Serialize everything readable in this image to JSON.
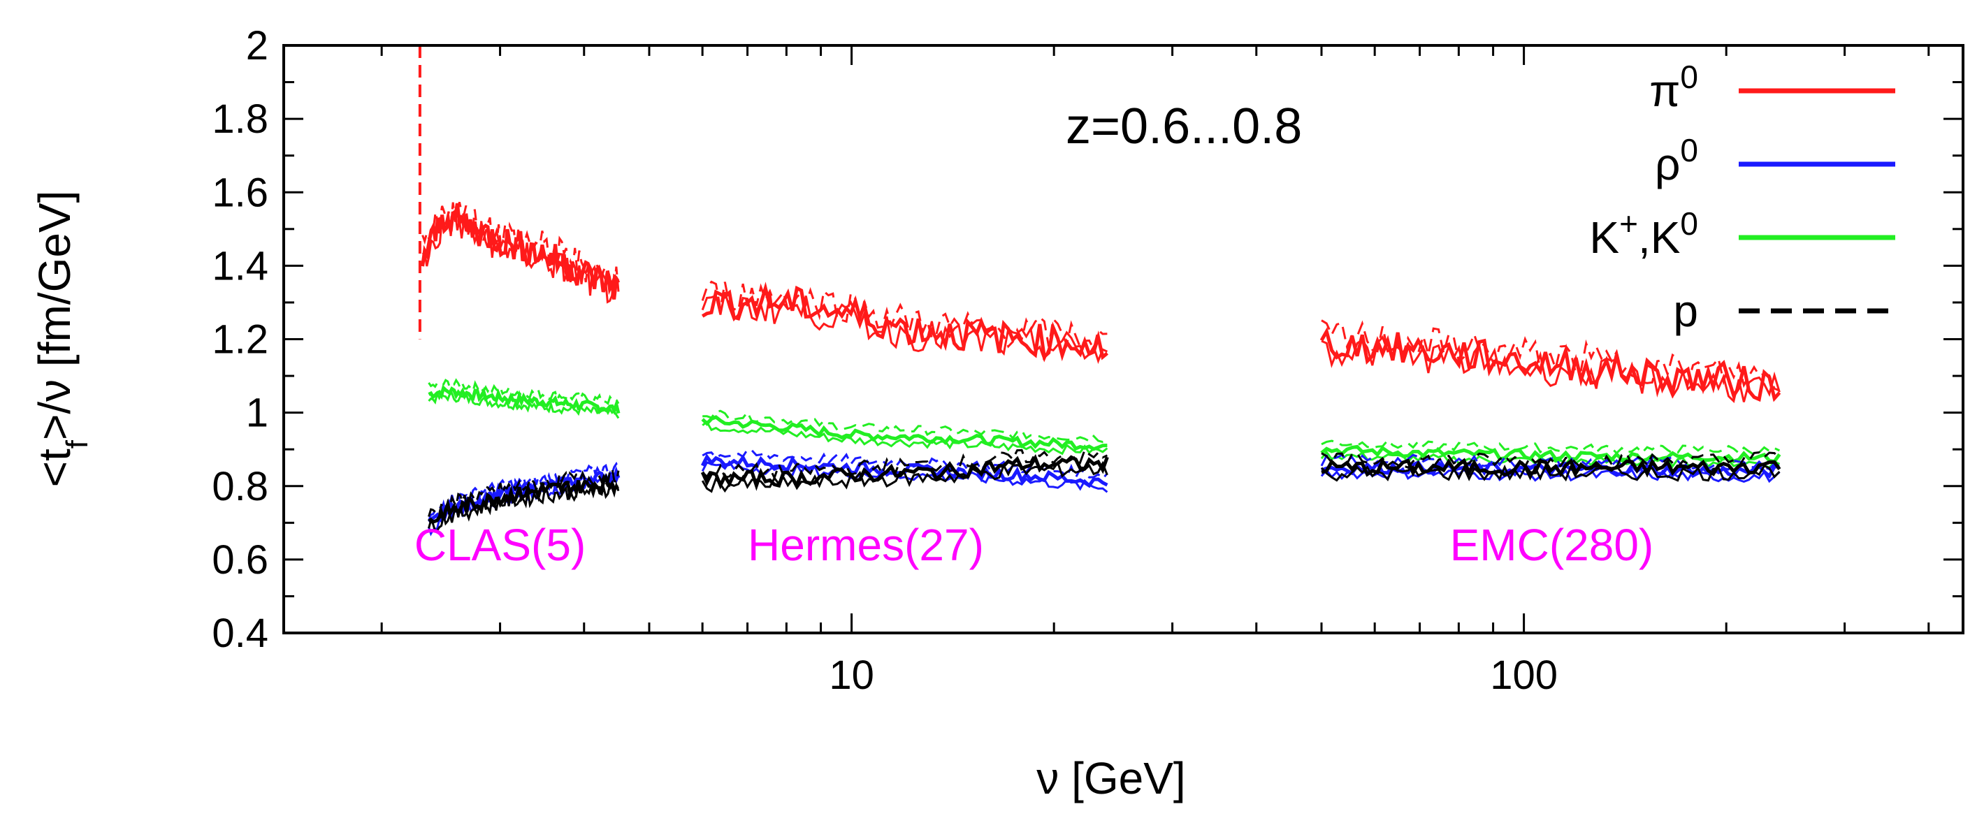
{
  "chart_data": {
    "type": "line",
    "title": "",
    "annotation": "z=0.6...0.8",
    "xlabel": "ν [GeV]",
    "ylabel": "<t_f>/ν [fm/GeV]",
    "xscale": "log",
    "xlim": [
      1.43,
      450
    ],
    "ylim": [
      0.4,
      2.0
    ],
    "xticks": [
      1,
      10,
      100
    ],
    "yticks": [
      0.4,
      0.6,
      0.8,
      1.0,
      1.2,
      1.4,
      1.6,
      1.8,
      2.0
    ],
    "ytick_labels": [
      "0.4",
      "0.6",
      "0.8",
      "1",
      "1.2",
      "1.4",
      "1.6",
      "1.8",
      "2"
    ],
    "xtick_labels": [
      "10",
      "100"
    ],
    "legend_position": "top-right",
    "colors": {
      "pi0": "#ff1a1a",
      "rho0": "#1a1aff",
      "K": "#22ee22",
      "p": "#000000",
      "exp": "#ff00ff"
    },
    "legend": [
      {
        "key": "pi0",
        "label": "π",
        "sup": "0",
        "style": "solid"
      },
      {
        "key": "rho0",
        "label": "ρ",
        "sup": "0",
        "style": "solid"
      },
      {
        "key": "K",
        "label": "K",
        "sup": "+",
        "label2": ",K",
        "sup2": "0",
        "style": "solid"
      },
      {
        "key": "p",
        "label": "p",
        "sup": "",
        "style": "dashed"
      }
    ],
    "experiments": [
      {
        "label": "CLAS(5)",
        "x": 3.0,
        "y": 0.64
      },
      {
        "label": "Hermes(27)",
        "x": 10.5,
        "y": 0.64
      },
      {
        "label": "EMC(280)",
        "x": 110,
        "y": 0.64
      }
    ],
    "series": [
      {
        "key": "pi0",
        "range": "CLAS",
        "x": [
          2.3,
          2.5,
          2.75,
          3.0,
          3.5,
          4.0,
          4.5
        ],
        "y": [
          1.42,
          1.54,
          1.5,
          1.47,
          1.43,
          1.38,
          1.34
        ]
      },
      {
        "key": "pi0",
        "range": "Hermes",
        "x": [
          6,
          8,
          10,
          12,
          15,
          18,
          22,
          24
        ],
        "y": [
          1.3,
          1.3,
          1.27,
          1.23,
          1.21,
          1.2,
          1.19,
          1.17
        ]
      },
      {
        "key": "pi0",
        "range": "EMC",
        "x": [
          50,
          60,
          80,
          100,
          130,
          160,
          200,
          240
        ],
        "y": [
          1.19,
          1.18,
          1.16,
          1.14,
          1.12,
          1.1,
          1.09,
          1.07
        ]
      },
      {
        "key": "K",
        "range": "CLAS",
        "x": [
          2.35,
          2.5,
          3.0,
          3.5,
          4.0,
          4.5
        ],
        "y": [
          1.05,
          1.06,
          1.04,
          1.03,
          1.02,
          1.01
        ]
      },
      {
        "key": "K",
        "range": "Hermes",
        "x": [
          6,
          8,
          10,
          14,
          18,
          24
        ],
        "y": [
          0.98,
          0.96,
          0.94,
          0.93,
          0.92,
          0.91
        ]
      },
      {
        "key": "K",
        "range": "EMC",
        "x": [
          50,
          70,
          100,
          150,
          200,
          240
        ],
        "y": [
          0.9,
          0.89,
          0.885,
          0.88,
          0.88,
          0.875
        ]
      },
      {
        "key": "rho0",
        "range": "CLAS",
        "x": [
          2.35,
          2.5,
          3.0,
          3.5,
          4.0,
          4.5
        ],
        "y": [
          0.69,
          0.74,
          0.78,
          0.8,
          0.82,
          0.83
        ]
      },
      {
        "key": "rho0",
        "range": "Hermes",
        "x": [
          6,
          8,
          10,
          14,
          18,
          24
        ],
        "y": [
          0.87,
          0.86,
          0.85,
          0.84,
          0.83,
          0.81
        ]
      },
      {
        "key": "rho0",
        "range": "EMC",
        "x": [
          50,
          70,
          100,
          150,
          200,
          240
        ],
        "y": [
          0.85,
          0.85,
          0.845,
          0.845,
          0.84,
          0.84
        ]
      },
      {
        "key": "p",
        "range": "CLAS",
        "x": [
          2.35,
          2.5,
          3.0,
          3.5,
          4.0,
          4.5
        ],
        "y": [
          0.7,
          0.73,
          0.77,
          0.79,
          0.8,
          0.81
        ]
      },
      {
        "key": "p",
        "range": "Hermes",
        "x": [
          6,
          8,
          10,
          14,
          18,
          24
        ],
        "y": [
          0.82,
          0.82,
          0.83,
          0.84,
          0.86,
          0.86
        ]
      },
      {
        "key": "p",
        "range": "EMC",
        "x": [
          50,
          70,
          100,
          150,
          200,
          240
        ],
        "y": [
          0.85,
          0.85,
          0.85,
          0.85,
          0.85,
          0.86
        ]
      }
    ]
  }
}
